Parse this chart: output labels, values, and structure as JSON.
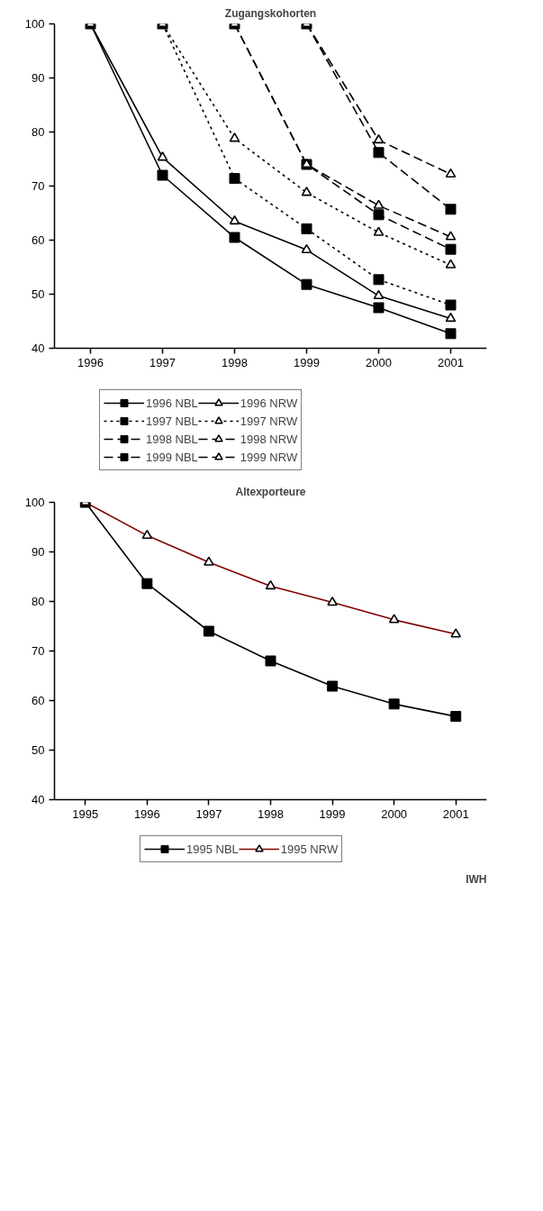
{
  "chart_data": [
    {
      "type": "line",
      "title": "Zugangskohorten",
      "categories": [
        "1996",
        "1997",
        "1998",
        "1999",
        "2000",
        "2001"
      ],
      "ylim": [
        40,
        100
      ],
      "yticks": [
        40,
        50,
        60,
        70,
        80,
        90,
        100
      ],
      "grid": false,
      "legend": "bottom",
      "series": [
        {
          "name": "1996 NBL",
          "color": "#000000",
          "marker": "square",
          "line_style": "solid",
          "values": [
            100,
            72,
            60.5,
            51.8,
            47.5,
            42.7
          ]
        },
        {
          "name": "1996 NRW",
          "color": "#000000",
          "marker": "triangle",
          "line_style": "solid",
          "values": [
            100,
            75.3,
            63.5,
            58.2,
            49.7,
            45.5
          ]
        },
        {
          "name": "1997 NBL",
          "color": "#000000",
          "marker": "square",
          "line_style": "dotted",
          "values": [
            null,
            100,
            71.4,
            62.1,
            52.7,
            48
          ]
        },
        {
          "name": "1997 NRW",
          "color": "#000000",
          "marker": "triangle",
          "line_style": "dotted",
          "values": [
            null,
            100,
            78.8,
            68.8,
            61.4,
            55.4
          ]
        },
        {
          "name": "1998 NBL",
          "color": "#000000",
          "marker": "square",
          "line_style": "dashed",
          "values": [
            null,
            null,
            100,
            74,
            64.7,
            58.3
          ]
        },
        {
          "name": "1998 NRW",
          "color": "#000000",
          "marker": "triangle",
          "line_style": "dashed",
          "values": [
            null,
            null,
            100,
            74,
            66.4,
            60.6
          ]
        },
        {
          "name": "1999 NBL",
          "color": "#000000",
          "marker": "square",
          "line_style": "dashed",
          "values": [
            null,
            null,
            null,
            100,
            76.2,
            65.7
          ]
        },
        {
          "name": "1999 NRW",
          "color": "#000000",
          "marker": "triangle",
          "line_style": "dashed",
          "values": [
            null,
            null,
            null,
            100,
            78.5,
            72.2
          ]
        }
      ]
    },
    {
      "type": "line",
      "title": "Altexporteure",
      "categories": [
        "1995",
        "1996",
        "1997",
        "1998",
        "1999",
        "2000",
        "2001"
      ],
      "ylim": [
        40,
        100
      ],
      "yticks": [
        40,
        50,
        60,
        70,
        80,
        90,
        100
      ],
      "grid": false,
      "legend": "bottom",
      "annotations": [
        "IWH"
      ],
      "series": [
        {
          "name": "1995 NBL",
          "color": "#000000",
          "marker": "square",
          "line_style": "solid",
          "values": [
            100,
            83.6,
            74,
            68,
            62.9,
            59.3,
            56.8
          ]
        },
        {
          "name": "1995 NRW",
          "color": "#800000",
          "marker": "triangle",
          "line_style": "solid",
          "values": [
            100,
            93.3,
            87.9,
            83.1,
            79.8,
            76.3,
            73.4
          ]
        }
      ]
    }
  ]
}
